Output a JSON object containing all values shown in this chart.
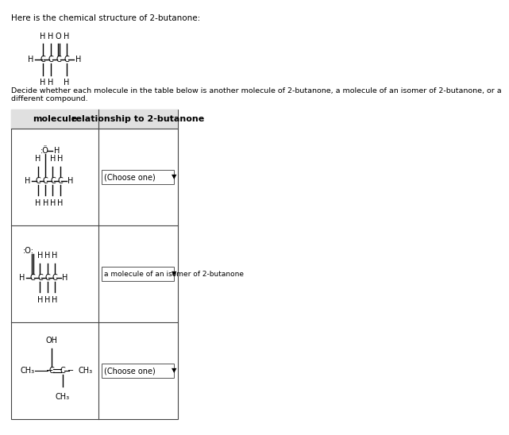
{
  "bg_color": "#ffffff",
  "text_color": "#000000",
  "title_text": "Here is the chemical structure of 2-butanone:",
  "subtitle_text": "Decide whether each molecule in the table below is another molecule of 2-butanone, a molecule of an isomer of 2-butanone, or a\ndifferent compound.",
  "col1_header": "molecule",
  "col2_header": "relationship to 2-butanone",
  "dropdown1": "(Choose one)",
  "dropdown2": "a molecule of an isomer of 2-butanone",
  "dropdown3": "(Choose one)",
  "table_border_color": "#555555",
  "header_bg": "#e8e8e8"
}
